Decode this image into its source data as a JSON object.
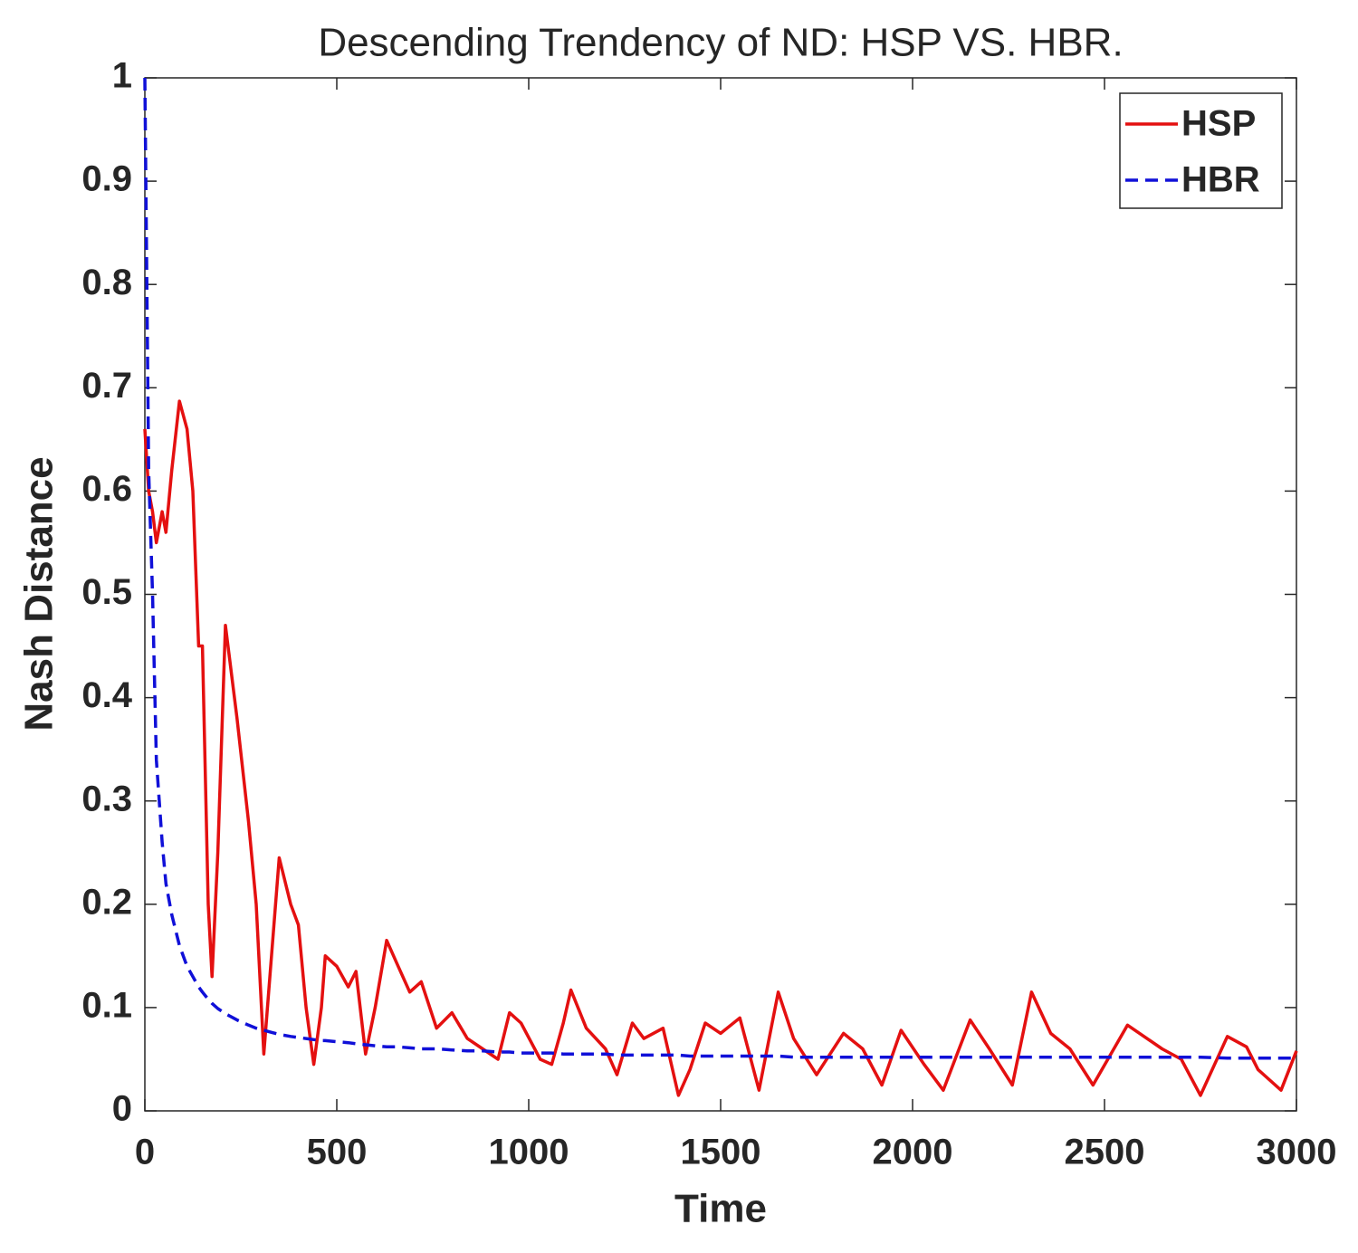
{
  "chart_data": {
    "type": "line",
    "title": "Descending Trendency of ND: HSP VS. HBR.",
    "xlabel": "Time",
    "ylabel": "Nash Distance",
    "x": [
      0,
      10,
      20,
      30,
      45,
      55,
      70,
      90,
      110,
      125,
      140,
      150,
      165,
      175,
      190,
      210,
      240,
      270,
      290,
      310,
      330,
      350,
      380,
      400,
      420,
      440,
      460,
      470,
      500,
      530,
      550,
      575,
      600,
      630,
      660,
      690,
      720,
      760,
      800,
      840,
      880,
      920,
      950,
      980,
      1030,
      1060,
      1090,
      1110,
      1150,
      1200,
      1230,
      1270,
      1300,
      1350,
      1390,
      1420,
      1460,
      1500,
      1550,
      1600,
      1650,
      1690,
      1750,
      1820,
      1870,
      1920,
      1970,
      2030,
      2080,
      2150,
      2200,
      2260,
      2310,
      2360,
      2410,
      2470,
      2560,
      2650,
      2700,
      2750,
      2820,
      2870,
      2900,
      2960,
      3000
    ],
    "series": [
      {
        "name": "HSP",
        "color": "#e41010",
        "dashed": false,
        "values": [
          0.66,
          0.6,
          0.58,
          0.55,
          0.58,
          0.56,
          0.62,
          0.687,
          0.66,
          0.6,
          0.45,
          0.45,
          0.2,
          0.13,
          0.25,
          0.47,
          0.38,
          0.28,
          0.2,
          0.055,
          0.15,
          0.245,
          0.2,
          0.18,
          0.1,
          0.045,
          0.1,
          0.15,
          0.14,
          0.12,
          0.135,
          0.055,
          0.1,
          0.165,
          0.14,
          0.115,
          0.125,
          0.08,
          0.095,
          0.07,
          0.06,
          0.05,
          0.095,
          0.085,
          0.05,
          0.045,
          0.085,
          0.117,
          0.08,
          0.06,
          0.035,
          0.085,
          0.07,
          0.08,
          0.015,
          0.04,
          0.085,
          0.075,
          0.09,
          0.02,
          0.115,
          0.07,
          0.035,
          0.075,
          0.06,
          0.025,
          0.078,
          0.045,
          0.02,
          0.088,
          0.06,
          0.025,
          0.115,
          0.075,
          0.06,
          0.025,
          0.083,
          0.06,
          0.05,
          0.015,
          0.072,
          0.062,
          0.04,
          0.02,
          0.058
        ]
      },
      {
        "name": "HBR",
        "color": "#1010d8",
        "dashed": true,
        "values": [
          1,
          0.62,
          0.5,
          0.34,
          0.26,
          0.22,
          0.19,
          0.16,
          0.14,
          0.13,
          0.12,
          0.115,
          0.108,
          0.104,
          0.099,
          0.094,
          0.088,
          0.083,
          0.08,
          0.078,
          0.076,
          0.074,
          0.072,
          0.071,
          0.07,
          0.069,
          0.068,
          0.068,
          0.067,
          0.066,
          0.065,
          0.064,
          0.063,
          0.062,
          0.062,
          0.061,
          0.06,
          0.06,
          0.059,
          0.058,
          0.058,
          0.057,
          0.057,
          0.056,
          0.056,
          0.056,
          0.055,
          0.055,
          0.055,
          0.055,
          0.054,
          0.054,
          0.054,
          0.054,
          0.054,
          0.053,
          0.053,
          0.053,
          0.053,
          0.053,
          0.053,
          0.052,
          0.052,
          0.052,
          0.052,
          0.052,
          0.052,
          0.052,
          0.052,
          0.052,
          0.052,
          0.052,
          0.052,
          0.052,
          0.052,
          0.052,
          0.052,
          0.052,
          0.052,
          0.052,
          0.051,
          0.051,
          0.051,
          0.051,
          0.051
        ]
      }
    ],
    "xlim": [
      0,
      3000
    ],
    "xticks": [
      0,
      500,
      1000,
      1500,
      2000,
      2500,
      3000
    ],
    "ylim": [
      0,
      1
    ],
    "yticks": [
      0,
      0.1,
      0.2,
      0.3,
      0.4,
      0.5,
      0.6,
      0.7,
      0.8,
      0.9,
      1
    ],
    "legend": "upper right",
    "grid": false
  }
}
